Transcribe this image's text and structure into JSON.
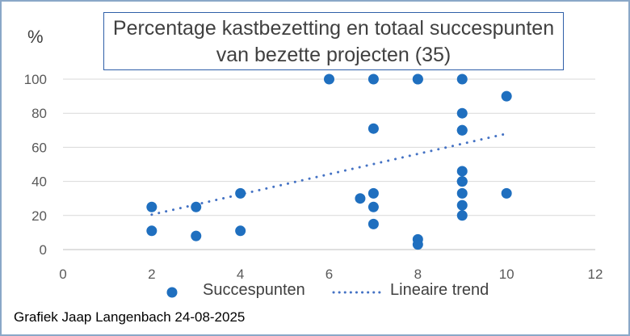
{
  "chart_data": {
    "type": "scatter",
    "title": "Percentage kastbezetting en totaal succespunten van bezette projecten (35)",
    "title_lines": [
      "Percentage kastbezetting en totaal succespunten",
      "van bezette projecten (35)"
    ],
    "ylabel": "%",
    "xlabel": "",
    "xlim": [
      0,
      12
    ],
    "ylim": [
      0,
      100
    ],
    "x_ticks": [
      0,
      2,
      4,
      6,
      8,
      10,
      12
    ],
    "y_ticks": [
      0,
      20,
      40,
      60,
      80,
      100
    ],
    "grid": "horizontal",
    "legend_position": "bottom",
    "series": [
      {
        "name": "Succespunten",
        "color": "#1f6fbf",
        "points": [
          {
            "x": 2,
            "y": 25
          },
          {
            "x": 2,
            "y": 11
          },
          {
            "x": 3,
            "y": 25
          },
          {
            "x": 3,
            "y": 8
          },
          {
            "x": 4,
            "y": 33
          },
          {
            "x": 4,
            "y": 11
          },
          {
            "x": 6,
            "y": 100
          },
          {
            "x": 6.7,
            "y": 30
          },
          {
            "x": 7,
            "y": 100
          },
          {
            "x": 7,
            "y": 71
          },
          {
            "x": 7,
            "y": 33
          },
          {
            "x": 7,
            "y": 25
          },
          {
            "x": 7,
            "y": 15
          },
          {
            "x": 8,
            "y": 100
          },
          {
            "x": 8,
            "y": 100
          },
          {
            "x": 8,
            "y": 6
          },
          {
            "x": 8,
            "y": 3
          },
          {
            "x": 9,
            "y": 100
          },
          {
            "x": 9,
            "y": 80
          },
          {
            "x": 9,
            "y": 70
          },
          {
            "x": 9,
            "y": 70
          },
          {
            "x": 9,
            "y": 46
          },
          {
            "x": 9,
            "y": 40
          },
          {
            "x": 9,
            "y": 40
          },
          {
            "x": 9,
            "y": 33
          },
          {
            "x": 9,
            "y": 26
          },
          {
            "x": 9,
            "y": 20
          },
          {
            "x": 10,
            "y": 90
          },
          {
            "x": 10,
            "y": 33
          }
        ]
      },
      {
        "name": "Lineaire trend",
        "type": "trendline",
        "color": "#4472c4",
        "points": [
          {
            "x": 2,
            "y": 20.5
          },
          {
            "x": 10,
            "y": 68
          }
        ]
      }
    ]
  },
  "footer": {
    "credit": "Grafiek Jaap Langenbach 24-08-2025"
  }
}
